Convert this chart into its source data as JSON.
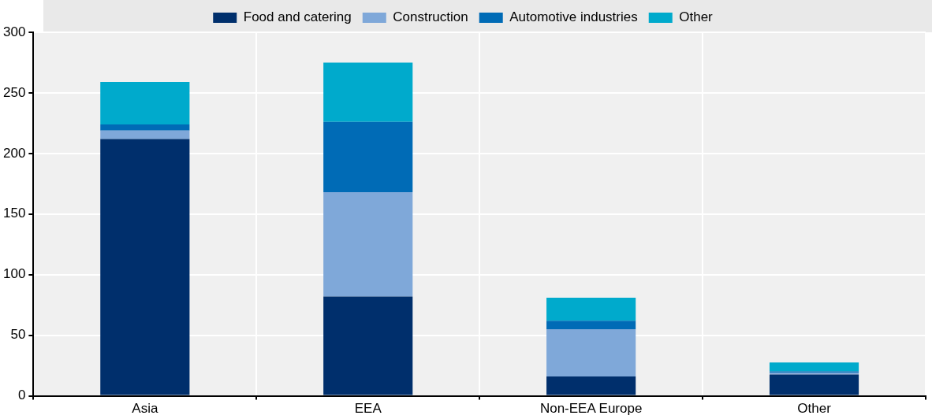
{
  "chart_data": {
    "type": "bar",
    "stacked": true,
    "categories": [
      "Asia",
      "EEA",
      "Non-EEA Europe",
      "Other"
    ],
    "series": [
      {
        "name": "Food and catering",
        "color": "#002f6c",
        "values": [
          212,
          82,
          16,
          17.6
        ]
      },
      {
        "name": "Construction",
        "color": "#7fa8d9",
        "values": [
          7,
          86,
          39,
          1.4
        ]
      },
      {
        "name": "Automotive industries",
        "color": "#006bb6",
        "values": [
          5,
          58,
          7,
          1.2
        ]
      },
      {
        "name": "Other",
        "color": "#00aacc",
        "values": [
          35,
          49,
          19,
          7.4
        ]
      }
    ],
    "ylim": [
      0,
      300
    ],
    "yticks": [
      0,
      50,
      100,
      150,
      200,
      250,
      300
    ],
    "grid": true,
    "legend": "top"
  }
}
